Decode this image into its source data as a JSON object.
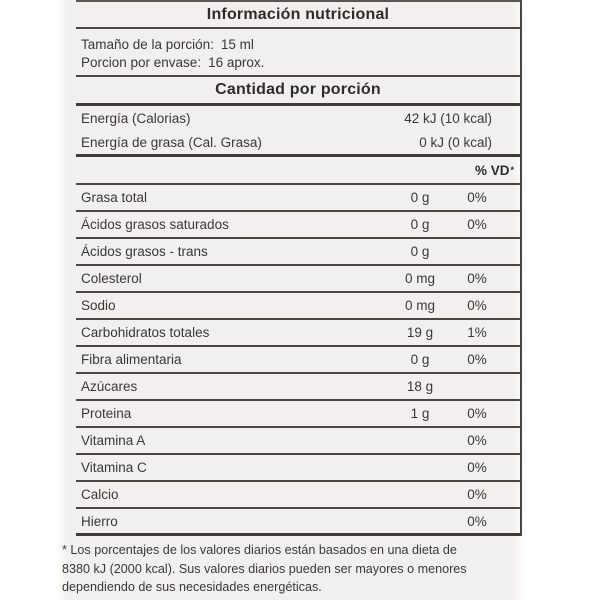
{
  "colors": {
    "page_bg": "#ffffff",
    "label_bg": "#f1f0ee",
    "text": "#3b3834",
    "rule": "#4b4640"
  },
  "label": {
    "title": "Información nutricional",
    "serving": {
      "size_label": "Tamaño de la porción:",
      "size_value": "15 ml",
      "count_label": "Porcion por envase:",
      "count_value": "16 aprox."
    },
    "section_header": "Cantidad por porción",
    "energy": [
      {
        "name": "Energía (Calorias)",
        "value": "42 kJ (10 kcal)"
      },
      {
        "name": "Energía de grasa (Cal. Grasa)",
        "value": "0 kJ (0 kcal)"
      }
    ],
    "dv_header": "% VD",
    "dv_header_sup": "*",
    "nutrients": [
      {
        "name": "Grasa total",
        "amount": "0 g",
        "dv": "0%"
      },
      {
        "name": "Ácidos grasos saturados",
        "amount": "0 g",
        "dv": "0%"
      },
      {
        "name": "Ácidos grasos - trans",
        "amount": "0 g",
        "dv": ""
      },
      {
        "name": "Colesterol",
        "amount": "0 mg",
        "dv": "0%"
      },
      {
        "name": "Sodio",
        "amount": "0 mg",
        "dv": "0%"
      },
      {
        "name": "Carbohidratos totales",
        "amount": "19 g",
        "dv": "1%"
      },
      {
        "name": "Fibra alimentaria",
        "amount": "0 g",
        "dv": "0%"
      },
      {
        "name": "Azúcares",
        "amount": "18 g",
        "dv": ""
      },
      {
        "name": "Proteina",
        "amount": "1 g",
        "dv": "0%"
      },
      {
        "name": "Vitamina A",
        "amount": "",
        "dv": "0%"
      },
      {
        "name": "Vitamina C",
        "amount": "",
        "dv": "0%"
      },
      {
        "name": "Calcio",
        "amount": "",
        "dv": "0%"
      },
      {
        "name": "Hierro",
        "amount": "",
        "dv": "0%"
      }
    ],
    "footnote_lines": [
      "* Los porcentajes de los valores diarios están basados en una dieta de",
      "8380 kJ (2000 kcal). Sus valores diarios pueden ser mayores o menores",
      "dependiendo de sus necesidades energéticas."
    ]
  }
}
